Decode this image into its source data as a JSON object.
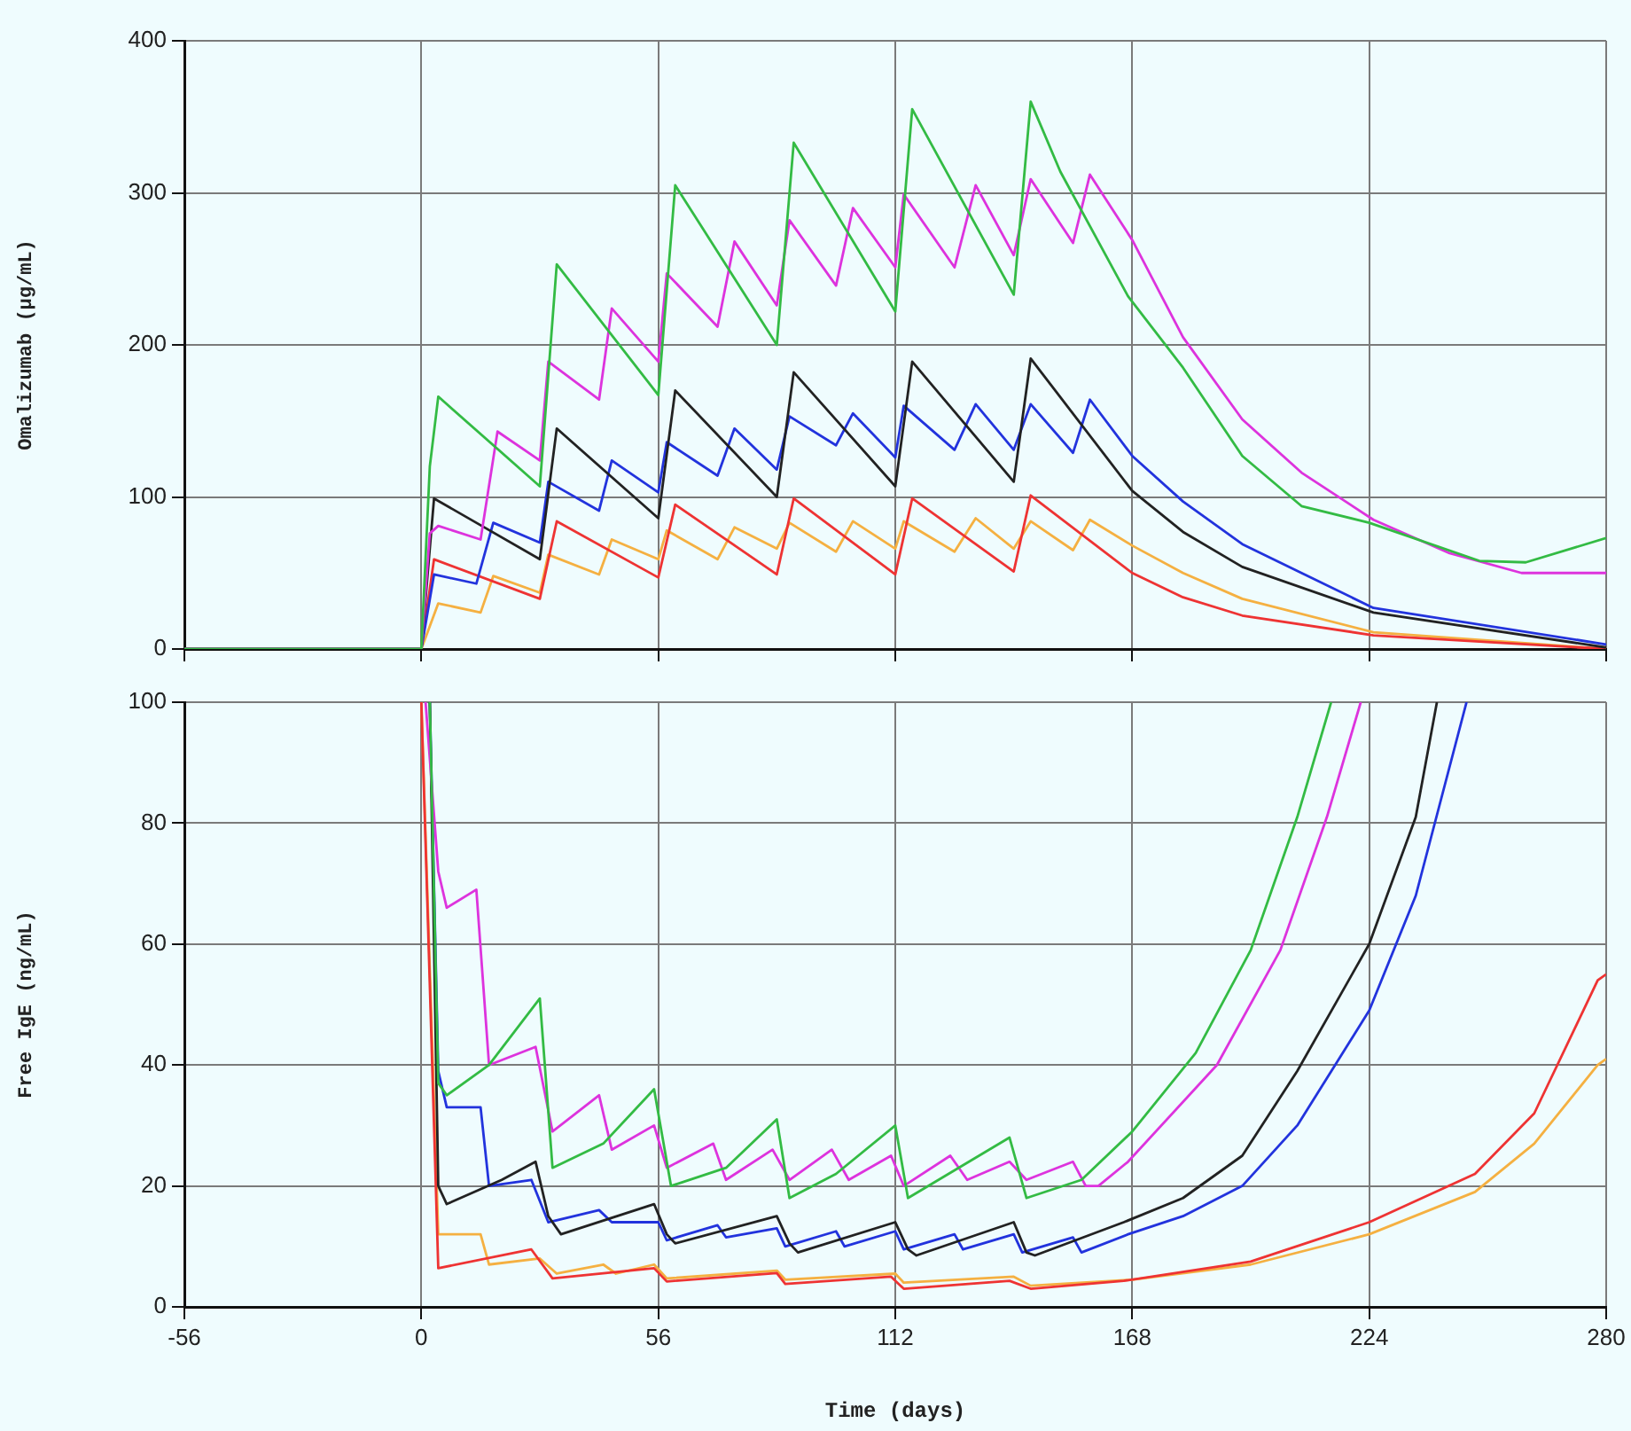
{
  "chart_data": [
    {
      "type": "line",
      "ylabel": "Omalizumab (µg/mL)",
      "xlim": [
        -56,
        280
      ],
      "xticks": [
        -56,
        0,
        56,
        112,
        168,
        224,
        280
      ],
      "ylim": [
        0,
        400
      ],
      "yticks": [
        0,
        100,
        200,
        300,
        400
      ],
      "grid": true,
      "legend": false,
      "tick_labels": "y",
      "series": [
        {
          "color": "#33bb44",
          "x": [
            -56,
            0,
            2,
            4,
            28,
            32,
            56,
            60,
            84,
            88,
            112,
            116,
            140,
            144,
            151,
            167,
            180,
            194,
            208,
            224,
            250,
            261,
            280
          ],
          "values": [
            0,
            0,
            120,
            166,
            107,
            253,
            167,
            305,
            200,
            333,
            222,
            355,
            233,
            360,
            314,
            232,
            185,
            127,
            94,
            83,
            58,
            57,
            73
          ]
        },
        {
          "color": "#dd33dd",
          "x": [
            -56,
            0,
            2,
            4,
            14,
            18,
            28,
            30,
            42,
            45,
            56,
            58,
            70,
            74,
            84,
            87,
            98,
            102,
            112,
            114,
            126,
            131,
            140,
            144,
            154,
            158,
            168,
            180,
            194,
            208,
            225,
            243,
            260,
            280
          ],
          "values": [
            0,
            0,
            76,
            81,
            72,
            143,
            124,
            189,
            164,
            224,
            189,
            247,
            212,
            268,
            226,
            282,
            239,
            290,
            251,
            299,
            251,
            305,
            259,
            309,
            267,
            312,
            269,
            205,
            151,
            116,
            85,
            63,
            50,
            50
          ]
        },
        {
          "color": "#222222",
          "x": [
            -56,
            0,
            3,
            28,
            32,
            56,
            60,
            84,
            88,
            112,
            116,
            140,
            144,
            168,
            180,
            194,
            225,
            280
          ],
          "values": [
            0,
            0,
            99,
            59,
            145,
            86,
            170,
            100,
            182,
            107,
            189,
            110,
            191,
            104,
            77,
            54,
            24,
            1
          ]
        },
        {
          "color": "#2233dd",
          "x": [
            -56,
            0,
            3,
            13,
            17,
            28,
            30,
            42,
            45,
            56,
            58,
            70,
            74,
            84,
            87,
            98,
            102,
            112,
            114,
            126,
            131,
            140,
            144,
            154,
            158,
            168,
            180,
            194,
            208,
            225,
            280
          ],
          "values": [
            0,
            0,
            49,
            43,
            83,
            70,
            110,
            91,
            124,
            103,
            136,
            114,
            145,
            118,
            153,
            134,
            155,
            126,
            160,
            131,
            161,
            131,
            161,
            129,
            164,
            127,
            97,
            69,
            50,
            27,
            3
          ]
        },
        {
          "color": "#ee3333",
          "x": [
            -56,
            0,
            3,
            28,
            32,
            56,
            60,
            84,
            88,
            112,
            116,
            140,
            144,
            168,
            180,
            194,
            225,
            280
          ],
          "values": [
            0,
            0,
            59,
            33,
            84,
            47,
            95,
            49,
            99,
            49,
            99,
            51,
            101,
            50,
            34,
            22,
            9,
            0
          ]
        },
        {
          "color": "#f5b041",
          "x": [
            -56,
            0,
            4,
            14,
            17,
            28,
            30,
            42,
            45,
            56,
            58,
            70,
            74,
            84,
            87,
            98,
            102,
            112,
            114,
            126,
            131,
            140,
            144,
            154,
            158,
            168,
            180,
            194,
            225,
            280
          ],
          "values": [
            0,
            0,
            30,
            24,
            48,
            37,
            62,
            49,
            72,
            59,
            78,
            59,
            80,
            66,
            83,
            64,
            84,
            66,
            84,
            64,
            86,
            66,
            84,
            65,
            85,
            68,
            50,
            33,
            11,
            0
          ]
        }
      ]
    },
    {
      "type": "line",
      "xlabel": "Time (days)",
      "ylabel": "Free IgE (ng/mL)",
      "xlim": [
        -56,
        280
      ],
      "xticks": [
        -56,
        0,
        56,
        112,
        168,
        224,
        280
      ],
      "ylim": [
        0,
        100
      ],
      "yticks": [
        0,
        20,
        40,
        60,
        80,
        100
      ],
      "grid": true,
      "legend": false,
      "series": [
        {
          "color": "#33bb44",
          "x": [
            2,
            4,
            6,
            16,
            28,
            31,
            43,
            55,
            59,
            72,
            84,
            87,
            98,
            112,
            115,
            139,
            143,
            156,
            168,
            183,
            196,
            207,
            215
          ],
          "values": [
            100,
            37,
            35,
            40,
            51,
            23,
            27,
            36,
            20,
            23,
            31,
            18,
            22,
            30,
            18,
            28,
            18,
            21,
            29,
            42,
            59,
            81,
            100
          ]
        },
        {
          "color": "#dd33dd",
          "x": [
            1,
            4,
            6,
            13,
            16,
            27,
            31,
            42,
            45,
            55,
            58,
            69,
            72,
            83,
            87,
            97,
            101,
            111,
            114,
            125,
            129,
            139,
            143,
            154,
            157,
            160,
            167,
            188,
            203,
            214,
            222
          ],
          "values": [
            100,
            72,
            66,
            69,
            40,
            43,
            29,
            35,
            26,
            30,
            23,
            27,
            21,
            26,
            21,
            26,
            21,
            25,
            20,
            25,
            21,
            24,
            21,
            24,
            20,
            20,
            24,
            40,
            59,
            81,
            100
          ]
        },
        {
          "color": "#222222",
          "x": [
            2,
            4,
            6,
            19,
            27,
            30,
            33,
            55,
            58,
            60,
            84,
            87,
            89,
            112,
            115,
            117,
            140,
            143,
            145,
            166,
            180,
            194,
            207,
            224,
            235,
            240
          ],
          "values": [
            100,
            20,
            17,
            21,
            24,
            15,
            12,
            17,
            12,
            10.5,
            15,
            10.5,
            9,
            14,
            9.5,
            8.5,
            14,
            9,
            8.5,
            14,
            18,
            25,
            39,
            60,
            81,
            100
          ]
        },
        {
          "color": "#2233dd",
          "x": [
            2,
            4,
            6,
            14,
            16,
            26,
            30,
            42,
            45,
            56,
            58,
            70,
            72,
            84,
            86,
            98,
            100,
            112,
            114,
            126,
            128,
            140,
            142,
            154,
            156,
            167,
            180,
            194,
            207,
            224,
            235,
            247
          ],
          "values": [
            100,
            39,
            33,
            33,
            20,
            21,
            14,
            16,
            14,
            14,
            11,
            13.5,
            11.5,
            13,
            10,
            12.5,
            10,
            12.5,
            9.5,
            12,
            9.5,
            12,
            9,
            11.5,
            9,
            12,
            15,
            20,
            30,
            49,
            68,
            100
          ]
        },
        {
          "color": "#ee3333",
          "x": [
            0,
            4,
            26,
            31,
            55,
            58,
            84,
            86,
            111,
            114,
            139,
            144,
            166,
            196,
            224,
            249,
            263,
            278,
            280
          ],
          "values": [
            100,
            6.4,
            9.5,
            4.7,
            6.4,
            4.2,
            5.6,
            3.8,
            5,
            3,
            4.3,
            3,
            4.3,
            7.5,
            14,
            22,
            32,
            54,
            55
          ]
        },
        {
          "color": "#f5b041",
          "x": [
            0,
            4,
            14,
            16,
            28,
            32,
            43,
            46,
            55,
            58,
            84,
            86,
            112,
            114,
            140,
            144,
            168,
            196,
            224,
            249,
            263,
            278,
            280
          ],
          "values": [
            100,
            12,
            12,
            7,
            8,
            5.5,
            7,
            5.5,
            7,
            4.7,
            6,
            4.5,
            5.5,
            4,
            5,
            3.5,
            4.5,
            7,
            12,
            19,
            27,
            40,
            41
          ]
        }
      ]
    }
  ]
}
